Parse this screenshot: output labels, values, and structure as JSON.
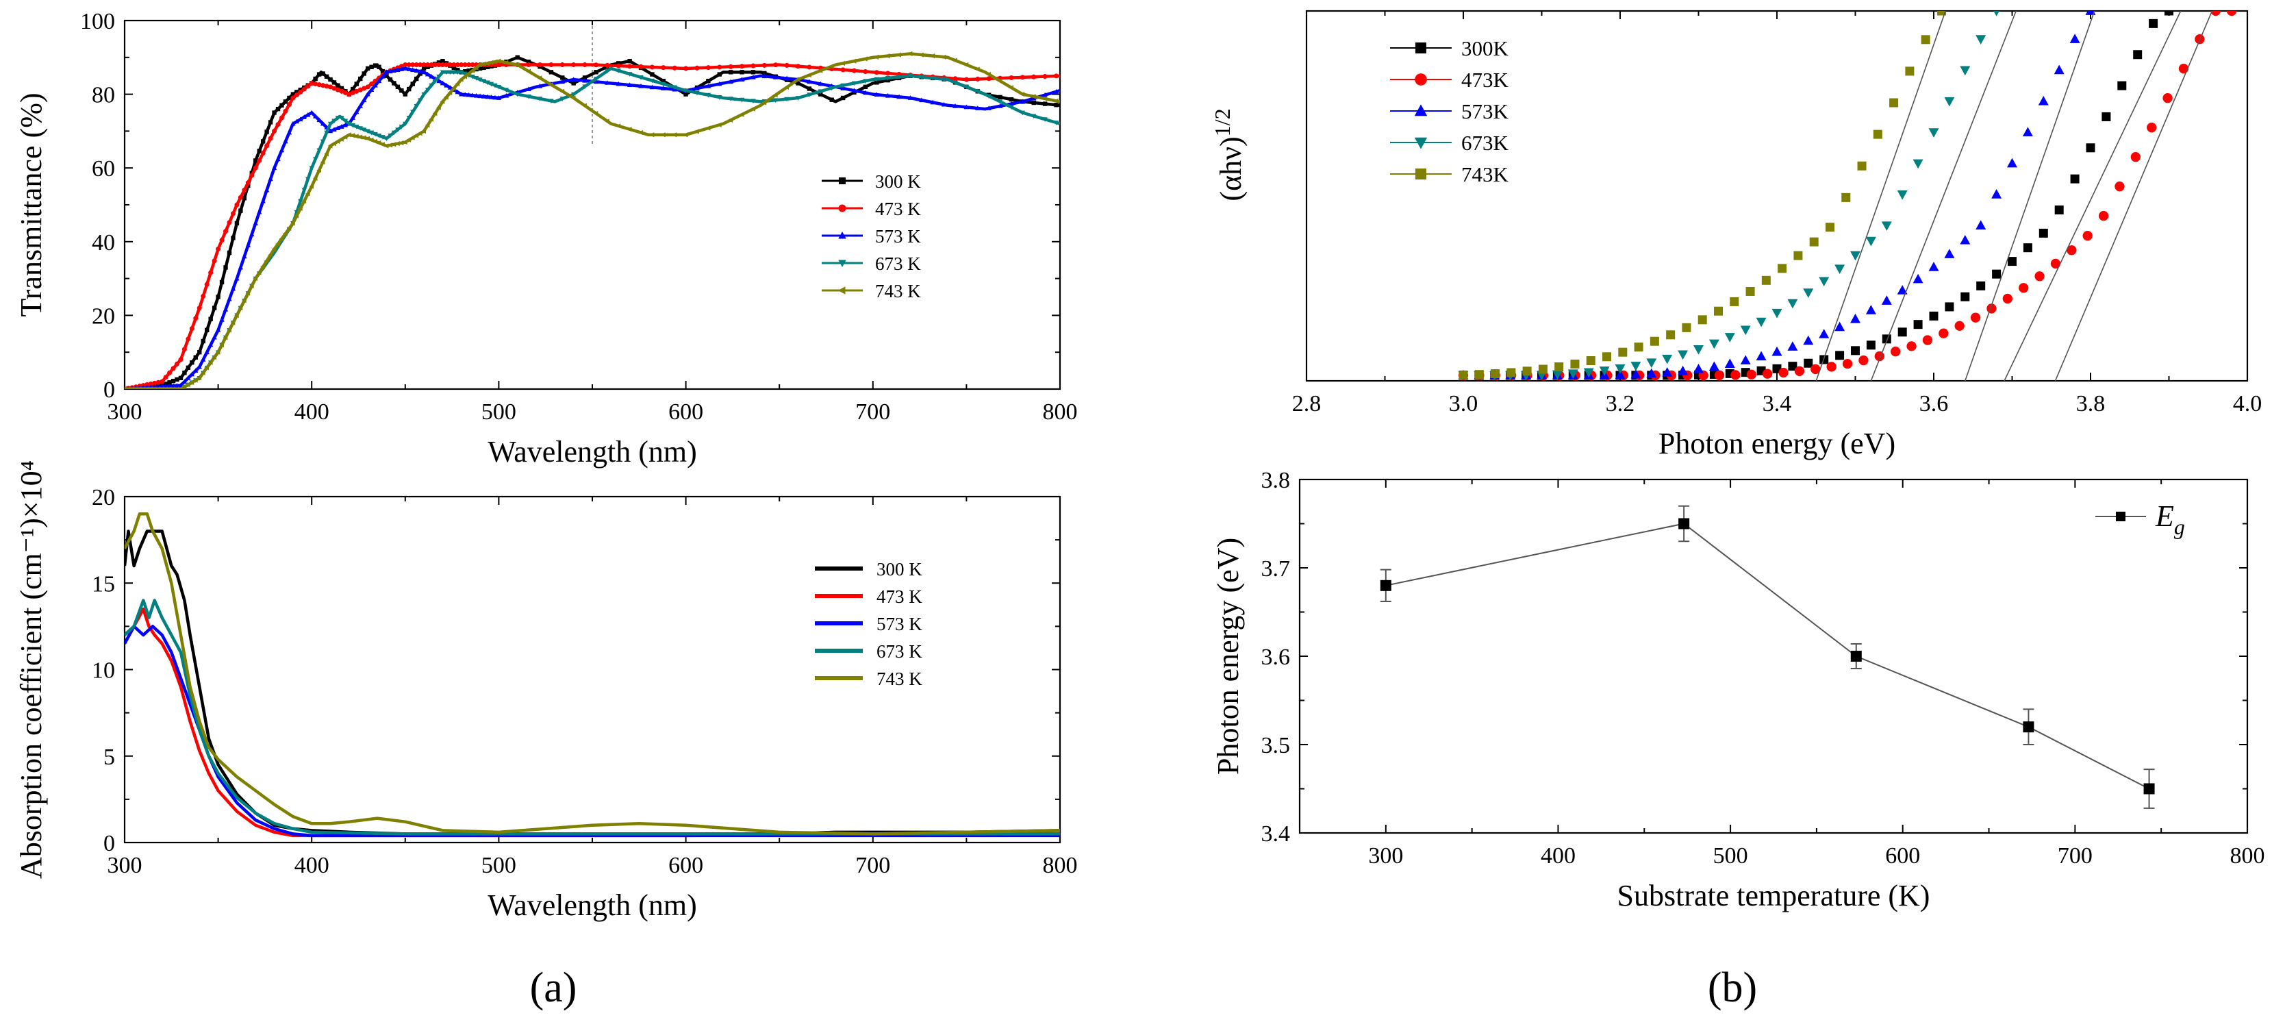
{
  "panels": {
    "a": "(a)",
    "b": "(b)"
  },
  "chart_data": [
    {
      "id": "transmittance",
      "type": "line",
      "title": "",
      "xlabel": "Wavelength (nm)",
      "ylabel": "Transmittance (%)",
      "xlim": [
        300,
        800
      ],
      "ylim": [
        0,
        100
      ],
      "xticks": [
        "300",
        "400",
        "500",
        "600",
        "700",
        "800"
      ],
      "yticks": [
        "0",
        "20",
        "40",
        "60",
        "80",
        "100"
      ],
      "legend_position": "center-right",
      "series": [
        {
          "name": "300 K",
          "color": "#000000",
          "marker": "square",
          "x": [
            300,
            320,
            330,
            340,
            350,
            360,
            370,
            380,
            390,
            400,
            405,
            410,
            420,
            430,
            435,
            440,
            450,
            460,
            470,
            480,
            500,
            510,
            520,
            540,
            560,
            570,
            580,
            600,
            620,
            640,
            660,
            680,
            700,
            720,
            740,
            760,
            780,
            800
          ],
          "y": [
            0,
            1,
            3,
            10,
            25,
            45,
            62,
            75,
            80,
            83,
            86,
            84,
            80,
            87,
            88,
            85,
            80,
            87,
            89,
            86,
            88,
            90,
            88,
            83,
            88,
            89,
            86,
            80,
            86,
            86,
            83,
            78,
            83,
            85,
            84,
            80,
            78,
            77
          ]
        },
        {
          "name": "473 K",
          "color": "#ff0000",
          "marker": "circle",
          "x": [
            300,
            320,
            330,
            340,
            350,
            360,
            370,
            380,
            390,
            400,
            410,
            420,
            430,
            440,
            450,
            460,
            470,
            500,
            550,
            600,
            650,
            700,
            750,
            800
          ],
          "y": [
            0,
            2,
            8,
            22,
            38,
            50,
            60,
            70,
            79,
            83,
            82,
            80,
            82,
            86,
            88,
            88,
            88,
            88,
            88,
            87,
            88,
            86,
            84,
            85
          ]
        },
        {
          "name": "573 K",
          "color": "#0000ff",
          "marker": "triangle-up",
          "x": [
            300,
            330,
            340,
            350,
            360,
            370,
            380,
            390,
            400,
            410,
            420,
            430,
            440,
            450,
            460,
            470,
            480,
            500,
            520,
            540,
            560,
            580,
            600,
            620,
            640,
            660,
            680,
            700,
            720,
            740,
            760,
            780,
            800
          ],
          "y": [
            0,
            1,
            6,
            16,
            30,
            45,
            60,
            72,
            75,
            70,
            72,
            80,
            86,
            87,
            86,
            83,
            80,
            79,
            82,
            84,
            83,
            82,
            81,
            83,
            85,
            84,
            82,
            80,
            79,
            77,
            76,
            78,
            81
          ]
        },
        {
          "name": "673 K",
          "color": "#008080",
          "marker": "triangle-down",
          "x": [
            300,
            330,
            340,
            350,
            360,
            370,
            380,
            390,
            400,
            410,
            415,
            420,
            430,
            440,
            450,
            460,
            470,
            480,
            490,
            500,
            510,
            520,
            530,
            540,
            560,
            580,
            600,
            620,
            640,
            660,
            680,
            700,
            720,
            740,
            760,
            780,
            800
          ],
          "y": [
            0,
            0,
            3,
            10,
            20,
            30,
            37,
            45,
            60,
            72,
            74,
            72,
            70,
            68,
            72,
            80,
            86,
            86,
            84,
            82,
            80,
            79,
            78,
            80,
            87,
            84,
            81,
            79,
            78,
            79,
            82,
            84,
            85,
            84,
            80,
            75,
            72
          ]
        },
        {
          "name": "743 K",
          "color": "#808000",
          "marker": "triangle-left",
          "x": [
            300,
            330,
            340,
            350,
            360,
            370,
            380,
            390,
            400,
            410,
            420,
            430,
            440,
            450,
            460,
            470,
            480,
            490,
            500,
            510,
            520,
            540,
            560,
            580,
            600,
            620,
            640,
            660,
            680,
            700,
            720,
            740,
            760,
            780,
            800
          ],
          "y": [
            0,
            0,
            3,
            10,
            20,
            30,
            38,
            45,
            55,
            66,
            69,
            68,
            66,
            67,
            70,
            78,
            84,
            88,
            89,
            88,
            85,
            79,
            72,
            69,
            69,
            72,
            77,
            84,
            88,
            90,
            91,
            90,
            86,
            80,
            78
          ]
        }
      ]
    },
    {
      "id": "absorption",
      "type": "line",
      "title": "",
      "xlabel": "Wavelength (nm)",
      "ylabel": "Absorption coefficient (cm⁻¹)×10⁴",
      "xlim": [
        300,
        800
      ],
      "ylim": [
        0,
        20
      ],
      "xticks": [
        "300",
        "400",
        "500",
        "600",
        "700",
        "800"
      ],
      "yticks": [
        "0",
        "5",
        "10",
        "15",
        "20"
      ],
      "legend_position": "center-right",
      "series": [
        {
          "name": "300 K",
          "color": "#000000",
          "x": [
            300,
            302,
            305,
            308,
            312,
            315,
            320,
            325,
            328,
            332,
            335,
            340,
            345,
            350,
            360,
            370,
            380,
            390,
            400,
            420,
            450,
            500,
            550,
            600,
            650,
            680,
            700,
            750,
            800
          ],
          "y": [
            16,
            18,
            16,
            17,
            18,
            18,
            18,
            16,
            15.5,
            14,
            12,
            9,
            6,
            4.5,
            2.8,
            1.7,
            1,
            0.8,
            0.7,
            0.6,
            0.5,
            0.5,
            0.5,
            0.5,
            0.5,
            0.6,
            0.6,
            0.6,
            0.7
          ]
        },
        {
          "name": "473 K",
          "color": "#ff0000",
          "x": [
            300,
            305,
            310,
            313,
            316,
            320,
            325,
            330,
            335,
            340,
            345,
            350,
            360,
            370,
            380,
            390,
            400,
            450,
            500,
            600,
            700,
            800
          ],
          "y": [
            12,
            12.5,
            13.5,
            12.5,
            12,
            11.5,
            10.5,
            9,
            7,
            5.3,
            4,
            3,
            1.8,
            1,
            0.6,
            0.4,
            0.4,
            0.4,
            0.4,
            0.4,
            0.5,
            0.5
          ]
        },
        {
          "name": "573 K",
          "color": "#0000ff",
          "x": [
            300,
            305,
            310,
            315,
            320,
            325,
            330,
            335,
            340,
            345,
            350,
            360,
            370,
            380,
            390,
            400,
            450,
            500,
            600,
            700,
            800
          ],
          "y": [
            11.5,
            12.5,
            12,
            12.5,
            12,
            11,
            9.5,
            8,
            6.5,
            5,
            3.8,
            2.3,
            1.3,
            0.8,
            0.5,
            0.4,
            0.4,
            0.4,
            0.4,
            0.4,
            0.4
          ]
        },
        {
          "name": "673 K",
          "color": "#008080",
          "x": [
            300,
            305,
            310,
            313,
            316,
            320,
            325,
            330,
            335,
            340,
            345,
            350,
            360,
            370,
            380,
            390,
            400,
            450,
            500,
            600,
            700,
            800
          ],
          "y": [
            12,
            12.5,
            14,
            13,
            14,
            13,
            12,
            11,
            8.5,
            6.5,
            5,
            4,
            2.6,
            1.7,
            1.1,
            0.8,
            0.6,
            0.5,
            0.5,
            0.5,
            0.5,
            0.5
          ]
        },
        {
          "name": "743 K",
          "color": "#808000",
          "x": [
            300,
            305,
            308,
            312,
            315,
            320,
            325,
            330,
            335,
            340,
            345,
            350,
            360,
            370,
            380,
            390,
            400,
            410,
            420,
            435,
            450,
            470,
            500,
            550,
            575,
            600,
            650,
            700,
            750,
            800
          ],
          "y": [
            17,
            18,
            19,
            19,
            18,
            17,
            15,
            12,
            9,
            7,
            5.5,
            4.8,
            3.8,
            3,
            2.2,
            1.5,
            1.1,
            1.1,
            1.2,
            1.4,
            1.2,
            0.7,
            0.6,
            1,
            1.1,
            1,
            0.6,
            0.5,
            0.6,
            0.7
          ]
        }
      ]
    },
    {
      "id": "tauc",
      "type": "scatter",
      "title": "",
      "xlabel": "Photon energy (eV)",
      "ylabel": "(αhν)",
      "ylabel_superscript": "1/2",
      "xlim": [
        2.8,
        4.0
      ],
      "ylim": [
        0,
        1
      ],
      "xticks": [
        "2.8",
        "3.0",
        "3.2",
        "3.4",
        "3.6",
        "3.8",
        "4.0"
      ],
      "yticks": [],
      "legend_position": "top-left",
      "series": [
        {
          "name": "300K",
          "color": "#000000",
          "marker": "square",
          "x_start": 3.0,
          "x_end": 3.9,
          "n": 46,
          "onset": 3.25,
          "knee": 3.75,
          "y_knee": 0.42,
          "slope": 4.2
        },
        {
          "name": "473K",
          "color": "#ff0000",
          "marker": "circle",
          "x_start": 3.0,
          "x_end": 3.98,
          "n": 49,
          "onset": 3.3,
          "knee": 3.81,
          "y_knee": 0.42,
          "slope": 3.9
        },
        {
          "name": "573K",
          "color": "#0000ff",
          "marker": "triangle-up",
          "x_start": 3.0,
          "x_end": 3.8,
          "n": 41,
          "onset": 3.15,
          "knee": 3.66,
          "y_knee": 0.42,
          "slope": 4.2
        },
        {
          "name": "673K",
          "color": "#008080",
          "marker": "triangle-down",
          "x_start": 3.0,
          "x_end": 3.68,
          "n": 35,
          "onset": 3.05,
          "knee": 3.54,
          "y_knee": 0.42,
          "slope": 4.2
        },
        {
          "name": "743K",
          "color": "#808000",
          "marker": "square",
          "x_start": 3.0,
          "x_end": 3.61,
          "n": 31,
          "onset": 2.95,
          "knee": 3.47,
          "y_knee": 0.42,
          "slope": 4.2
        }
      ],
      "fit_lines": [
        {
          "x1": 3.45,
          "y1": 0.0,
          "x2": 3.615,
          "y2": 1.0
        },
        {
          "x1": 3.52,
          "y1": 0.0,
          "x2": 3.705,
          "y2": 1.0
        },
        {
          "x1": 3.64,
          "y1": 0.0,
          "x2": 3.805,
          "y2": 1.0
        },
        {
          "x1": 3.69,
          "y1": 0.0,
          "x2": 3.915,
          "y2": 1.0
        },
        {
          "x1": 3.755,
          "y1": 0.0,
          "x2": 3.955,
          "y2": 1.0
        }
      ]
    },
    {
      "id": "bandgap",
      "type": "line",
      "title": "",
      "xlabel": "Substrate temperature (K)",
      "ylabel": "Photon energy (eV)",
      "xlim": [
        250,
        800
      ],
      "ylim": [
        3.4,
        3.8
      ],
      "xticks": [
        "300",
        "400",
        "500",
        "600",
        "700",
        "800"
      ],
      "yticks": [
        "3.4",
        "3.5",
        "3.6",
        "3.7",
        "3.8"
      ],
      "legend_position": "top-right",
      "legend": "E",
      "legend_subscript": "g",
      "series": [
        {
          "name": "Eg",
          "color": "#000000",
          "marker": "square",
          "x": [
            300,
            473,
            573,
            673,
            743
          ],
          "y": [
            3.68,
            3.75,
            3.6,
            3.52,
            3.45
          ],
          "err": [
            0.018,
            0.02,
            0.014,
            0.02,
            0.022
          ]
        }
      ]
    }
  ]
}
